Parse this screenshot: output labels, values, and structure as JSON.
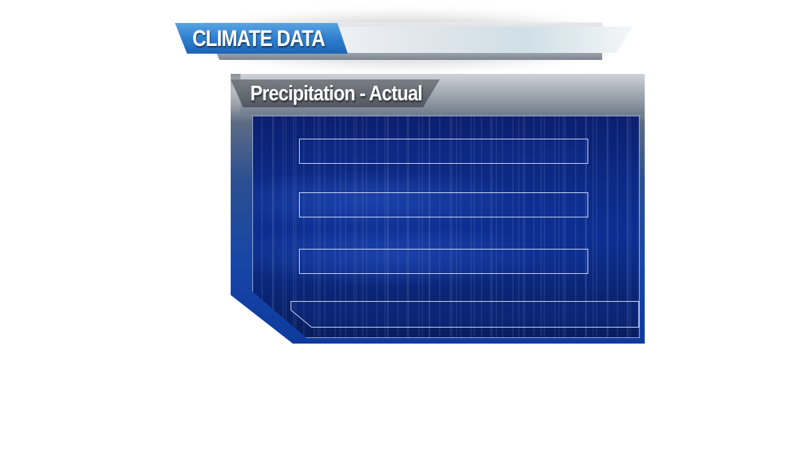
{
  "header": {
    "title": "CLIMATE DATA"
  },
  "panel": {
    "title": "Precipitation - Actual",
    "rows": [
      {
        "text": ""
      },
      {
        "text": ""
      },
      {
        "text": ""
      }
    ],
    "footer_text": ""
  },
  "colors": {
    "header_tab_blue": "#2f7fcf",
    "panel_blue": "#0d2f92",
    "row_border": "#e6ecff"
  }
}
